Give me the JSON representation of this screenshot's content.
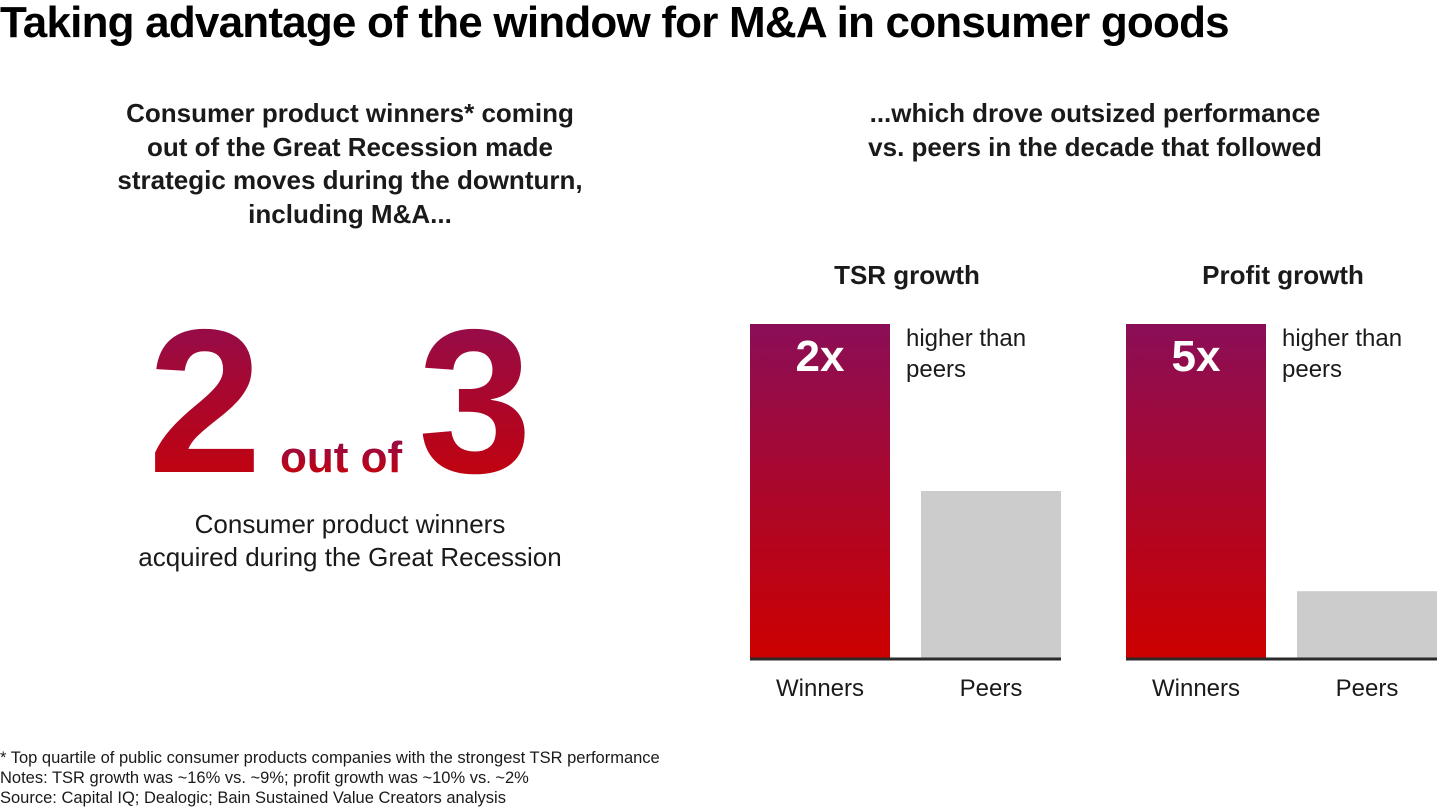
{
  "title": "Taking advantage of the window for M&A in consumer goods",
  "left_panel": {
    "subtitle_lines": [
      "Consumer product winners* coming",
      "out of the Great Recession made",
      "strategic moves during the downturn,",
      "including M&A..."
    ],
    "stat": {
      "numerator": "2",
      "connector": "out of",
      "denominator": "3"
    },
    "caption_lines": [
      "Consumer product winners",
      "acquired during the Great Recession"
    ]
  },
  "right_panel": {
    "subtitle_lines": [
      "...which drove outsized performance",
      "vs. peers in the decade that followed"
    ]
  },
  "colors": {
    "gradient_top": "#8a0e57",
    "gradient_bottom": "#cc0000",
    "peers_bar": "#cccccc",
    "axis_line": "#2a2a2a",
    "bar_label": "#ffffff",
    "text": "#1a1a1a"
  },
  "chart_data": [
    {
      "type": "bar",
      "title": "TSR growth",
      "categories": [
        "Winners",
        "Peers"
      ],
      "values": [
        2,
        1
      ],
      "value_units": "relative (peers = 1)",
      "bar_label": "2x",
      "annotation_lines": [
        "higher than",
        "peers"
      ],
      "notes_values": {
        "winners": "~16%",
        "peers": "~9%"
      },
      "xlabel": "",
      "ylabel": "",
      "ylim": [
        0,
        2
      ],
      "grid": false,
      "legend": "none"
    },
    {
      "type": "bar",
      "title": "Profit growth",
      "categories": [
        "Winners",
        "Peers"
      ],
      "values": [
        5,
        1
      ],
      "value_units": "relative (peers = 1)",
      "bar_label": "5x",
      "annotation_lines": [
        "higher than",
        "peers"
      ],
      "notes_values": {
        "winners": "~10%",
        "peers": "~2%"
      },
      "xlabel": "",
      "ylabel": "",
      "ylim": [
        0,
        5
      ],
      "grid": false,
      "legend": "none"
    }
  ],
  "footnotes": [
    "* Top quartile of public consumer products companies with the strongest TSR performance",
    "Notes: TSR growth was ~16% vs. ~9%; profit growth was ~10% vs. ~2%",
    "Source: Capital IQ; Dealogic; Bain Sustained Value Creators analysis"
  ]
}
